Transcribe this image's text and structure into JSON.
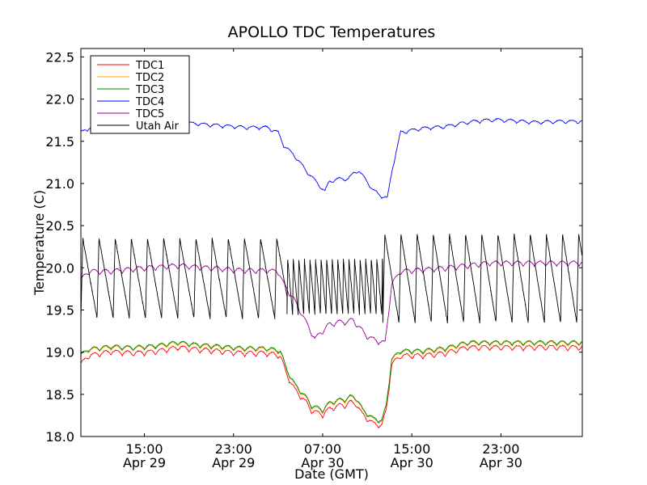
{
  "chart_data": {
    "type": "line",
    "title": "APOLLO TDC Temperatures",
    "xlabel": "Date (GMT)",
    "ylabel": "Temperature (C)",
    "x_unit": "hours since 2011-04-29 00:00 GMT",
    "xlim": [
      9.3,
      54.3
    ],
    "ylim": [
      18.0,
      22.6
    ],
    "yticks": [
      18.0,
      18.5,
      19.0,
      19.5,
      20.0,
      20.5,
      21.0,
      21.5,
      22.0,
      22.5
    ],
    "ytick_labels": [
      "18.0",
      "18.5",
      "19.0",
      "19.5",
      "20.0",
      "20.5",
      "21.0",
      "21.5",
      "22.0",
      "22.5"
    ],
    "xticks": [
      {
        "x": 15,
        "time": "15:00",
        "date": "Apr 29"
      },
      {
        "x": 23,
        "time": "23:00",
        "date": "Apr 29"
      },
      {
        "x": 31,
        "time": "07:00",
        "date": "Apr 30"
      },
      {
        "x": 39,
        "time": "15:00",
        "date": "Apr 30"
      },
      {
        "x": 47,
        "time": "23:00",
        "date": "Apr 30"
      }
    ],
    "legend_position": "top-left",
    "series": [
      {
        "name": "TDC1",
        "color": "#ff0000",
        "osc_amp": 0.06,
        "osc_period": 1.0,
        "noise": 0.012,
        "points": [
          [
            9.3,
            18.85
          ],
          [
            10,
            18.95
          ],
          [
            12,
            19.0
          ],
          [
            14,
            18.98
          ],
          [
            16,
            19.0
          ],
          [
            18,
            19.05
          ],
          [
            20,
            19.02
          ],
          [
            22,
            19.0
          ],
          [
            24,
            18.98
          ],
          [
            26,
            18.98
          ],
          [
            27.2,
            18.95
          ],
          [
            27.8,
            18.72
          ],
          [
            28.5,
            18.55
          ],
          [
            29.5,
            18.4
          ],
          [
            30,
            18.3
          ],
          [
            31,
            18.25
          ],
          [
            31.6,
            18.32
          ],
          [
            32.5,
            18.36
          ],
          [
            33,
            18.36
          ],
          [
            33.5,
            18.4
          ],
          [
            34,
            18.38
          ],
          [
            34.6,
            18.25
          ],
          [
            35.5,
            18.15
          ],
          [
            36.3,
            18.12
          ],
          [
            36.7,
            18.3
          ],
          [
            37.2,
            18.85
          ],
          [
            38,
            18.95
          ],
          [
            40,
            18.95
          ],
          [
            42,
            18.98
          ],
          [
            44,
            19.05
          ],
          [
            46,
            19.05
          ],
          [
            48,
            19.05
          ],
          [
            50,
            19.05
          ],
          [
            52,
            19.05
          ],
          [
            54.3,
            19.05
          ]
        ]
      },
      {
        "name": "TDC2",
        "color": "#ffaa00",
        "osc_amp": 0.05,
        "osc_period": 1.0,
        "noise": 0.01,
        "points": [
          [
            9.3,
            18.95
          ],
          [
            10,
            19.02
          ],
          [
            12,
            19.05
          ],
          [
            14,
            19.04
          ],
          [
            16,
            19.06
          ],
          [
            18,
            19.1
          ],
          [
            20,
            19.07
          ],
          [
            22,
            19.05
          ],
          [
            24,
            19.03
          ],
          [
            26,
            19.03
          ],
          [
            27.2,
            19.0
          ],
          [
            27.8,
            18.77
          ],
          [
            28.5,
            18.6
          ],
          [
            29.5,
            18.45
          ],
          [
            30,
            18.35
          ],
          [
            31,
            18.3
          ],
          [
            31.6,
            18.38
          ],
          [
            32.5,
            18.42
          ],
          [
            33,
            18.42
          ],
          [
            33.5,
            18.46
          ],
          [
            34,
            18.44
          ],
          [
            34.6,
            18.3
          ],
          [
            35.5,
            18.2
          ],
          [
            36.3,
            18.17
          ],
          [
            36.7,
            18.35
          ],
          [
            37.2,
            18.9
          ],
          [
            38,
            19.0
          ],
          [
            40,
            19.0
          ],
          [
            42,
            19.03
          ],
          [
            44,
            19.1
          ],
          [
            46,
            19.1
          ],
          [
            48,
            19.1
          ],
          [
            50,
            19.1
          ],
          [
            52,
            19.1
          ],
          [
            54.3,
            19.1
          ]
        ]
      },
      {
        "name": "TDC3",
        "color": "#008000",
        "osc_amp": 0.05,
        "osc_period": 1.0,
        "noise": 0.01,
        "points": [
          [
            9.3,
            18.96
          ],
          [
            10,
            19.03
          ],
          [
            12,
            19.06
          ],
          [
            14,
            19.05
          ],
          [
            16,
            19.07
          ],
          [
            18,
            19.11
          ],
          [
            20,
            19.08
          ],
          [
            22,
            19.06
          ],
          [
            24,
            19.04
          ],
          [
            26,
            19.04
          ],
          [
            27.2,
            19.01
          ],
          [
            27.8,
            18.78
          ],
          [
            28.5,
            18.61
          ],
          [
            29.5,
            18.46
          ],
          [
            30,
            18.36
          ],
          [
            31,
            18.31
          ],
          [
            31.6,
            18.39
          ],
          [
            32.5,
            18.43
          ],
          [
            33,
            18.43
          ],
          [
            33.5,
            18.47
          ],
          [
            34,
            18.45
          ],
          [
            34.6,
            18.31
          ],
          [
            35.5,
            18.21
          ],
          [
            36.3,
            18.18
          ],
          [
            36.7,
            18.36
          ],
          [
            37.2,
            18.91
          ],
          [
            38,
            19.01
          ],
          [
            40,
            19.01
          ],
          [
            42,
            19.04
          ],
          [
            44,
            19.11
          ],
          [
            46,
            19.11
          ],
          [
            48,
            19.11
          ],
          [
            50,
            19.11
          ],
          [
            52,
            19.11
          ],
          [
            54.3,
            19.11
          ]
        ]
      },
      {
        "name": "TDC4",
        "color": "#0000ff",
        "osc_amp": 0.04,
        "osc_period": 1.1,
        "noise": 0.01,
        "points": [
          [
            9.3,
            21.6
          ],
          [
            10,
            21.65
          ],
          [
            12,
            21.68
          ],
          [
            14,
            21.67
          ],
          [
            16,
            21.7
          ],
          [
            18,
            21.72
          ],
          [
            20,
            21.7
          ],
          [
            22,
            21.68
          ],
          [
            24,
            21.66
          ],
          [
            26,
            21.66
          ],
          [
            27,
            21.6
          ],
          [
            27.5,
            21.45
          ],
          [
            28.5,
            21.32
          ],
          [
            29.5,
            21.15
          ],
          [
            30.5,
            21.0
          ],
          [
            31.2,
            20.9
          ],
          [
            31.6,
            21.02
          ],
          [
            32.5,
            21.05
          ],
          [
            33.3,
            21.05
          ],
          [
            33.8,
            21.12
          ],
          [
            34.2,
            21.15
          ],
          [
            34.8,
            21.05
          ],
          [
            35.5,
            20.92
          ],
          [
            36.2,
            20.85
          ],
          [
            36.8,
            20.82
          ],
          [
            37.3,
            21.2
          ],
          [
            38,
            21.6
          ],
          [
            40,
            21.65
          ],
          [
            42,
            21.67
          ],
          [
            44,
            21.72
          ],
          [
            46,
            21.75
          ],
          [
            48,
            21.74
          ],
          [
            50,
            21.72
          ],
          [
            52,
            21.73
          ],
          [
            54.3,
            21.73
          ]
        ]
      },
      {
        "name": "TDC5",
        "color": "#990099",
        "osc_amp": 0.06,
        "osc_period": 1.0,
        "noise": 0.01,
        "points": [
          [
            9.3,
            19.85
          ],
          [
            10,
            19.95
          ],
          [
            12,
            19.95
          ],
          [
            14,
            19.98
          ],
          [
            16,
            20.0
          ],
          [
            18,
            20.02
          ],
          [
            20,
            20.0
          ],
          [
            22,
            19.98
          ],
          [
            24,
            19.96
          ],
          [
            26,
            19.96
          ],
          [
            27,
            19.95
          ],
          [
            27.5,
            19.8
          ],
          [
            28.5,
            19.6
          ],
          [
            29.5,
            19.35
          ],
          [
            30.3,
            19.15
          ],
          [
            30.8,
            19.22
          ],
          [
            31.6,
            19.32
          ],
          [
            32.5,
            19.35
          ],
          [
            33.2,
            19.35
          ],
          [
            33.7,
            19.38
          ],
          [
            34.2,
            19.3
          ],
          [
            35,
            19.18
          ],
          [
            36,
            19.12
          ],
          [
            36.6,
            19.1
          ],
          [
            37.2,
            19.8
          ],
          [
            38,
            19.95
          ],
          [
            40,
            19.97
          ],
          [
            42,
            19.99
          ],
          [
            44,
            20.02
          ],
          [
            46,
            20.05
          ],
          [
            48,
            20.05
          ],
          [
            50,
            20.05
          ],
          [
            52,
            20.05
          ],
          [
            54.3,
            20.05
          ]
        ]
      },
      {
        "name": "Utah Air",
        "color": "#000000",
        "segments": [
          {
            "x0": 9.3,
            "x1": 27.8,
            "period": 1.45,
            "low": 19.4,
            "high": 20.35
          },
          {
            "x0": 27.8,
            "x1": 36.4,
            "period": 0.5,
            "low": 19.45,
            "high": 20.1
          },
          {
            "x0": 36.4,
            "x1": 54.3,
            "period": 1.45,
            "low": 19.35,
            "high": 20.4
          }
        ]
      }
    ]
  }
}
